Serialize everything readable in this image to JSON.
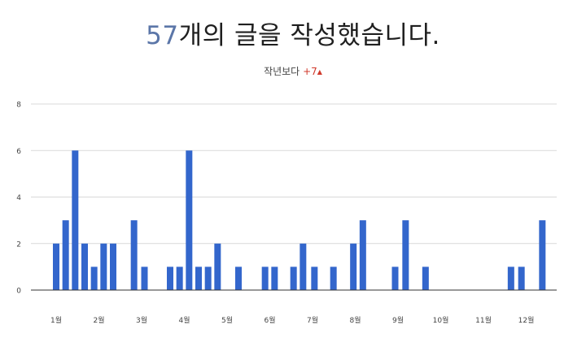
{
  "header": {
    "count": "57",
    "title_rest": "개의 글을 작성했습니다.",
    "compare_label": "작년보다",
    "compare_value": "+7",
    "compare_arrow": "▲"
  },
  "colors": {
    "bar": "#3366cc",
    "count_accent": "#5b76a8",
    "delta": "#d0392b",
    "grid": "#d9d9d9",
    "baseline": "#333333"
  },
  "chart_data": {
    "type": "bar",
    "x_unit": "week of year",
    "x_range": [
      1,
      52
    ],
    "ylim": [
      0,
      8
    ],
    "yticks": [
      0,
      2,
      4,
      6,
      8
    ],
    "grid": true,
    "xticks": [
      {
        "label": "1월",
        "x": 1
      },
      {
        "label": "2월",
        "x": 5.5
      },
      {
        "label": "3월",
        "x": 10
      },
      {
        "label": "4월",
        "x": 14.5
      },
      {
        "label": "5월",
        "x": 19
      },
      {
        "label": "6월",
        "x": 23.5
      },
      {
        "label": "7월",
        "x": 28
      },
      {
        "label": "8월",
        "x": 32.5
      },
      {
        "label": "9월",
        "x": 37
      },
      {
        "label": "10월",
        "x": 41.5
      },
      {
        "label": "11월",
        "x": 46
      },
      {
        "label": "12월",
        "x": 50.5
      }
    ],
    "bars": [
      {
        "x": 1,
        "value": 2
      },
      {
        "x": 2,
        "value": 3
      },
      {
        "x": 3,
        "value": 6
      },
      {
        "x": 4,
        "value": 2
      },
      {
        "x": 5,
        "value": 1
      },
      {
        "x": 6,
        "value": 2
      },
      {
        "x": 7,
        "value": 2
      },
      {
        "x": 9.2,
        "value": 3
      },
      {
        "x": 10.3,
        "value": 1
      },
      {
        "x": 13,
        "value": 1
      },
      {
        "x": 14,
        "value": 1
      },
      {
        "x": 15,
        "value": 6
      },
      {
        "x": 16,
        "value": 1
      },
      {
        "x": 17,
        "value": 1
      },
      {
        "x": 18,
        "value": 2
      },
      {
        "x": 20.2,
        "value": 1
      },
      {
        "x": 23,
        "value": 1
      },
      {
        "x": 24,
        "value": 1
      },
      {
        "x": 26,
        "value": 1
      },
      {
        "x": 27,
        "value": 2
      },
      {
        "x": 28.2,
        "value": 1
      },
      {
        "x": 30.2,
        "value": 1
      },
      {
        "x": 32.3,
        "value": 2
      },
      {
        "x": 33.3,
        "value": 3
      },
      {
        "x": 36.7,
        "value": 1
      },
      {
        "x": 37.8,
        "value": 3
      },
      {
        "x": 39.9,
        "value": 1
      },
      {
        "x": 48.9,
        "value": 1
      },
      {
        "x": 50,
        "value": 1
      },
      {
        "x": 52.2,
        "value": 3
      }
    ]
  }
}
